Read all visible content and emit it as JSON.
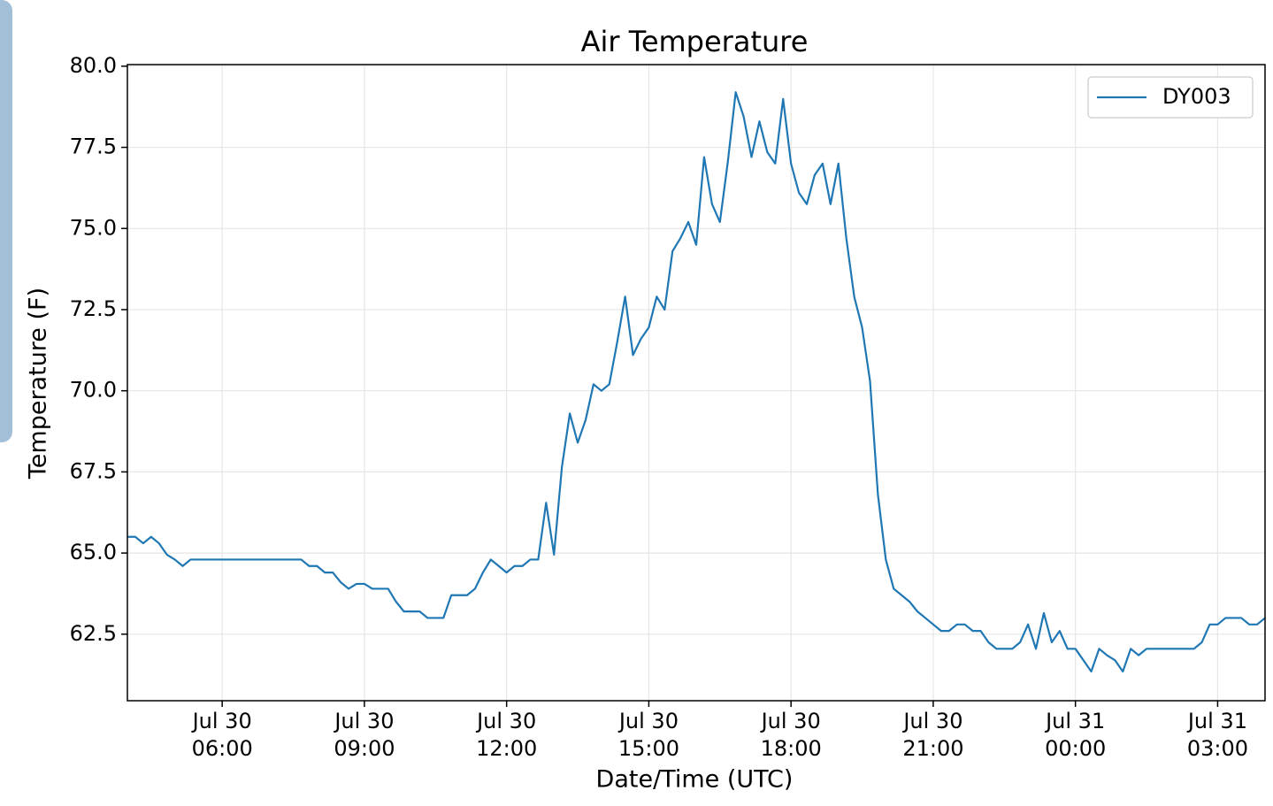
{
  "chart_data": {
    "type": "line",
    "title": "Air Temperature",
    "x_label": "Date/Time (UTC)",
    "y_label": "Temperature (F)",
    "x": [
      "Jul 30 04:00",
      "Jul 30 04:10",
      "Jul 30 04:20",
      "Jul 30 04:30",
      "Jul 30 04:40",
      "Jul 30 04:50",
      "Jul 30 05:00",
      "Jul 30 05:10",
      "Jul 30 05:20",
      "Jul 30 05:30",
      "Jul 30 05:40",
      "Jul 30 05:50",
      "Jul 30 06:00",
      "Jul 30 06:10",
      "Jul 30 06:20",
      "Jul 30 06:30",
      "Jul 30 06:40",
      "Jul 30 06:50",
      "Jul 30 07:00",
      "Jul 30 07:10",
      "Jul 30 07:20",
      "Jul 30 07:30",
      "Jul 30 07:40",
      "Jul 30 07:50",
      "Jul 30 08:00",
      "Jul 30 08:10",
      "Jul 30 08:20",
      "Jul 30 08:30",
      "Jul 30 08:40",
      "Jul 30 08:50",
      "Jul 30 09:00",
      "Jul 30 09:10",
      "Jul 30 09:20",
      "Jul 30 09:30",
      "Jul 30 09:40",
      "Jul 30 09:50",
      "Jul 30 10:00",
      "Jul 30 10:10",
      "Jul 30 10:20",
      "Jul 30 10:30",
      "Jul 30 10:40",
      "Jul 30 10:50",
      "Jul 30 11:00",
      "Jul 30 11:10",
      "Jul 30 11:20",
      "Jul 30 11:30",
      "Jul 30 11:40",
      "Jul 30 11:50",
      "Jul 30 12:00",
      "Jul 30 12:10",
      "Jul 30 12:20",
      "Jul 30 12:30",
      "Jul 30 12:40",
      "Jul 30 12:50",
      "Jul 30 13:00",
      "Jul 30 13:10",
      "Jul 30 13:20",
      "Jul 30 13:30",
      "Jul 30 13:40",
      "Jul 30 13:50",
      "Jul 30 14:00",
      "Jul 30 14:10",
      "Jul 30 14:20",
      "Jul 30 14:30",
      "Jul 30 14:40",
      "Jul 30 14:50",
      "Jul 30 15:00",
      "Jul 30 15:10",
      "Jul 30 15:20",
      "Jul 30 15:30",
      "Jul 30 15:40",
      "Jul 30 15:50",
      "Jul 30 16:00",
      "Jul 30 16:10",
      "Jul 30 16:20",
      "Jul 30 16:30",
      "Jul 30 16:40",
      "Jul 30 16:50",
      "Jul 30 17:00",
      "Jul 30 17:10",
      "Jul 30 17:20",
      "Jul 30 17:30",
      "Jul 30 17:40",
      "Jul 30 17:50",
      "Jul 30 18:00",
      "Jul 30 18:10",
      "Jul 30 18:20",
      "Jul 30 18:30",
      "Jul 30 18:40",
      "Jul 30 18:50",
      "Jul 30 19:00",
      "Jul 30 19:10",
      "Jul 30 19:20",
      "Jul 30 19:30",
      "Jul 30 19:40",
      "Jul 30 19:50",
      "Jul 30 20:00",
      "Jul 30 20:10",
      "Jul 30 20:20",
      "Jul 30 20:30",
      "Jul 30 20:40",
      "Jul 30 20:50",
      "Jul 30 21:00",
      "Jul 30 21:10",
      "Jul 30 21:20",
      "Jul 30 21:30",
      "Jul 30 21:40",
      "Jul 30 21:50",
      "Jul 30 22:00",
      "Jul 30 22:10",
      "Jul 30 22:20",
      "Jul 30 22:30",
      "Jul 30 22:40",
      "Jul 30 22:50",
      "Jul 30 23:00",
      "Jul 30 23:10",
      "Jul 30 23:20",
      "Jul 30 23:30",
      "Jul 30 23:40",
      "Jul 30 23:50",
      "Jul 31 00:00",
      "Jul 31 00:10",
      "Jul 31 00:20",
      "Jul 31 00:30",
      "Jul 31 00:40",
      "Jul 31 00:50",
      "Jul 31 01:00",
      "Jul 31 01:10",
      "Jul 31 01:20",
      "Jul 31 01:30",
      "Jul 31 01:40",
      "Jul 31 01:50",
      "Jul 31 02:00",
      "Jul 31 02:10",
      "Jul 31 02:20",
      "Jul 31 02:30",
      "Jul 31 02:40",
      "Jul 31 02:50",
      "Jul 31 03:00",
      "Jul 31 03:10",
      "Jul 31 03:20",
      "Jul 31 03:30",
      "Jul 31 03:40",
      "Jul 31 03:50",
      "Jul 31 04:00"
    ],
    "series": [
      {
        "name": "DY003",
        "color": "#1f77b4",
        "values": [
          65.5,
          65.5,
          65.3,
          65.5,
          65.3,
          64.95,
          64.8,
          64.6,
          64.8,
          64.8,
          64.8,
          64.8,
          64.8,
          64.8,
          64.8,
          64.8,
          64.8,
          64.8,
          64.8,
          64.8,
          64.8,
          64.8,
          64.8,
          64.6,
          64.6,
          64.4,
          64.4,
          64.1,
          63.9,
          64.05,
          64.05,
          63.9,
          63.9,
          63.9,
          63.5,
          63.2,
          63.2,
          63.2,
          63.0,
          63.0,
          63.0,
          63.7,
          63.7,
          63.7,
          63.9,
          64.4,
          64.8,
          64.6,
          64.4,
          64.6,
          64.6,
          64.8,
          64.8,
          66.55,
          64.95,
          67.65,
          69.3,
          68.4,
          69.1,
          70.2,
          70.0,
          70.2,
          71.5,
          72.9,
          71.1,
          71.6,
          71.95,
          72.9,
          72.5,
          74.3,
          74.7,
          75.2,
          74.5,
          77.2,
          75.75,
          75.2,
          77.05,
          79.2,
          78.45,
          77.2,
          78.3,
          77.35,
          77.0,
          78.99,
          77.0,
          76.1,
          75.75,
          76.65,
          77.0,
          75.75,
          77.0,
          74.7,
          72.9,
          71.95,
          70.3,
          66.8,
          64.8,
          63.9,
          63.7,
          63.5,
          63.2,
          63.0,
          62.8,
          62.6,
          62.6,
          62.8,
          62.8,
          62.6,
          62.6,
          62.25,
          62.05,
          62.05,
          62.05,
          62.25,
          62.8,
          62.05,
          63.15,
          62.25,
          62.6,
          62.05,
          62.05,
          61.7,
          61.35,
          62.05,
          61.85,
          61.7,
          61.35,
          62.05,
          61.85,
          62.05,
          62.05,
          62.05,
          62.05,
          62.05,
          62.05,
          62.05,
          62.25,
          62.8,
          62.8,
          63.0,
          63.0,
          63.0,
          62.8,
          62.8,
          63.0
        ]
      }
    ],
    "xlim": [
      "Jul 30 04:00",
      "Jul 31 04:00"
    ],
    "xticks": [
      {
        "value": "Jul 30 06:00",
        "label": [
          "Jul 30",
          "06:00"
        ]
      },
      {
        "value": "Jul 30 09:00",
        "label": [
          "Jul 30",
          "09:00"
        ]
      },
      {
        "value": "Jul 30 12:00",
        "label": [
          "Jul 30",
          "12:00"
        ]
      },
      {
        "value": "Jul 30 15:00",
        "label": [
          "Jul 30",
          "15:00"
        ]
      },
      {
        "value": "Jul 30 18:00",
        "label": [
          "Jul 30",
          "18:00"
        ]
      },
      {
        "value": "Jul 30 21:00",
        "label": [
          "Jul 30",
          "21:00"
        ]
      },
      {
        "value": "Jul 31 00:00",
        "label": [
          "Jul 31",
          "00:00"
        ]
      },
      {
        "value": "Jul 31 03:00",
        "label": [
          "Jul 31",
          "03:00"
        ]
      }
    ],
    "ylim": [
      60.45,
      80.05
    ],
    "yticks": [
      62.5,
      {
        "value": 65,
        "label": "65.0"
      },
      67.5,
      {
        "value": 70,
        "label": "70.0"
      },
      72.5,
      {
        "value": 75,
        "label": "75.0"
      },
      77.5,
      {
        "value": 80,
        "label": "80.0"
      }
    ],
    "grid": true,
    "legend": "upper right"
  }
}
